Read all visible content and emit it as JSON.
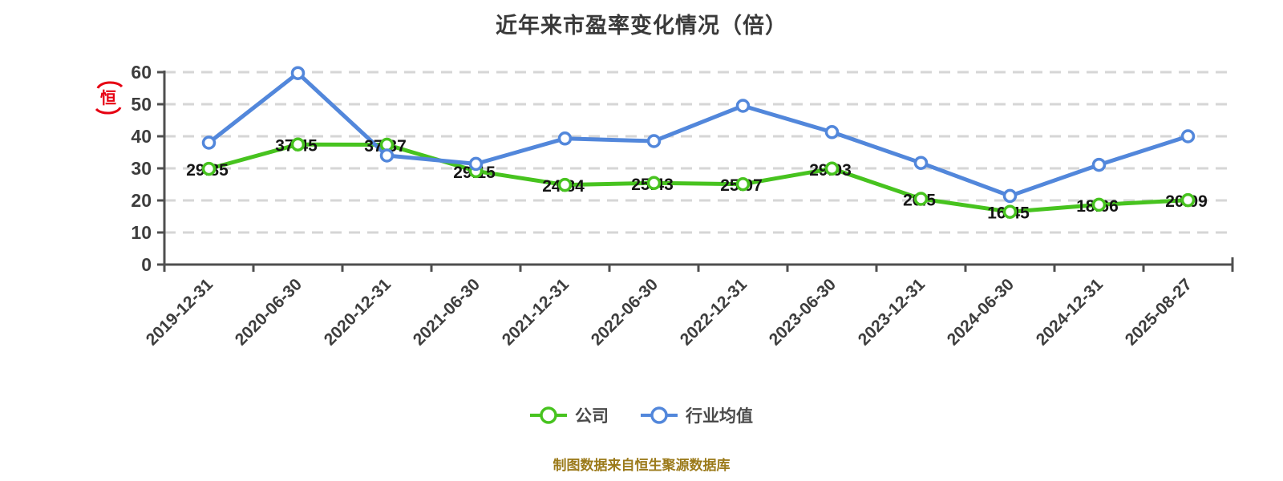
{
  "title": "近年来市盈率变化情况（倍）",
  "source_note": "制图数据来自恒生聚源数据库",
  "watermark": {
    "char": "恒",
    "color": "#e60012"
  },
  "colors": {
    "company_green": "#47c31f",
    "industry_blue": "#5287db",
    "grid_gray": "#d6d6d6",
    "axis_gray": "#4f4f4f",
    "note_gold": "#9b7a1a"
  },
  "chart_data": {
    "type": "line",
    "title": "近年来市盈率变化情况（倍）",
    "categories": [
      "2019-12-31",
      "2020-06-30",
      "2020-12-31",
      "2021-06-30",
      "2021-12-31",
      "2022-06-30",
      "2022-12-31",
      "2023-06-30",
      "2023-12-31",
      "2024-06-30",
      "2024-12-31",
      "2025-08-27"
    ],
    "series": [
      {
        "name": "公司",
        "color": "#47c31f",
        "values": [
          29.85,
          37.45,
          37.37,
          29.15,
          24.84,
          25.43,
          25.07,
          29.93,
          20.5,
          16.45,
          18.66,
          20.09
        ],
        "labels_visible": true
      },
      {
        "name": "行业均值",
        "color": "#5287db",
        "values": [
          38.0,
          59.7,
          34.0,
          31.4,
          39.3,
          38.5,
          49.5,
          41.3,
          31.7,
          21.4,
          31.1,
          40.0
        ],
        "labels_visible": false
      }
    ],
    "xlabel": "",
    "ylabel": "",
    "ylim": [
      0,
      60
    ],
    "yticks": [
      0,
      10,
      20,
      30,
      40,
      50,
      60
    ],
    "grid": "horizontal-dashed",
    "legend_position": "bottom",
    "marker": "white-circle"
  }
}
